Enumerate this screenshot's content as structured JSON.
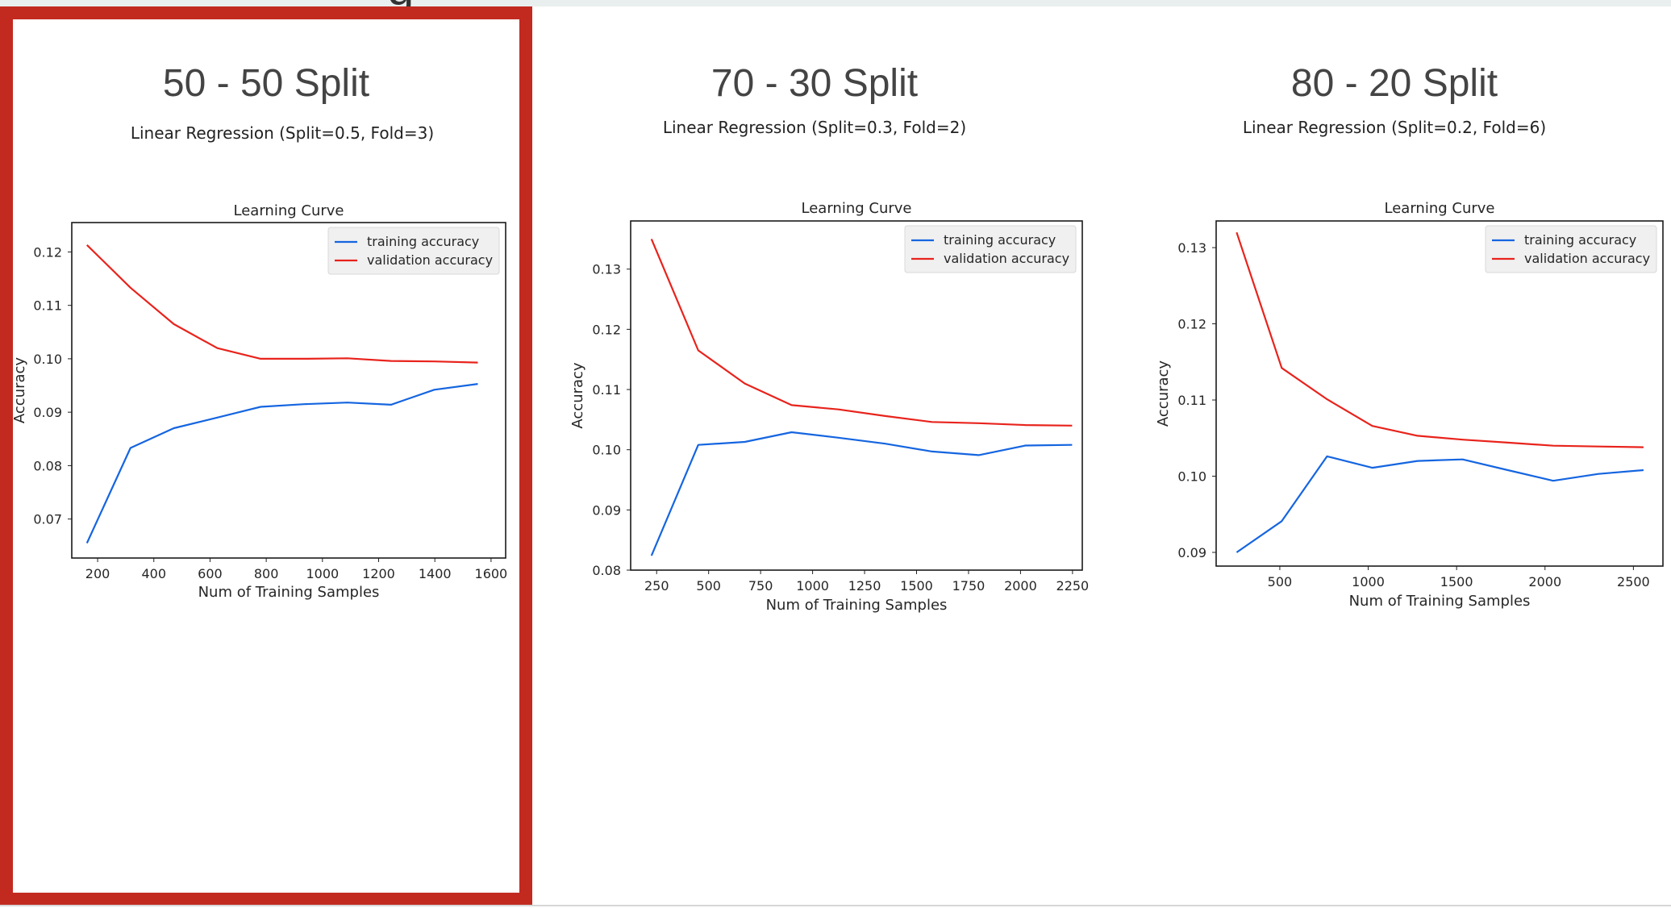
{
  "panels": [
    {
      "heading": "50 - 50 Split",
      "subtitle": "Linear Regression (Split=0.5, Fold=3)"
    },
    {
      "heading": "70 - 30 Split",
      "subtitle": "Linear Regression (Split=0.3, Fold=2)"
    },
    {
      "heading": "80 - 20 Split",
      "subtitle": "Linear Regression (Split=0.2, Fold=6)"
    }
  ],
  "colors": {
    "training": "#1565e0",
    "validation": "#e8231c",
    "highlight_border": "#c22a20",
    "legend_bg": "#f0f0f0"
  },
  "chart_data": [
    {
      "type": "line",
      "title": "Learning Curve",
      "xlabel": "Num of Training Samples",
      "ylabel": "Accuracy",
      "xlim": [
        108,
        1652
      ],
      "ylim": [
        0.0627,
        0.1255
      ],
      "xticks": [
        200,
        400,
        600,
        800,
        1000,
        1200,
        1400,
        1600
      ],
      "yticks": [
        0.07,
        0.08,
        0.09,
        0.1,
        0.11,
        0.12
      ],
      "ytick_labels": [
        "0.07",
        "0.08",
        "0.09",
        "0.10",
        "0.11",
        "0.12"
      ],
      "legend": "top-right",
      "grid": false,
      "series": [
        {
          "name": "training accuracy",
          "x": [
            162,
            317,
            471,
            626,
            780,
            935,
            1089,
            1244,
            1398,
            1553
          ],
          "y": [
            0.0655,
            0.0833,
            0.087,
            0.089,
            0.091,
            0.0915,
            0.0918,
            0.0914,
            0.0942,
            0.0953
          ]
        },
        {
          "name": "validation accuracy",
          "x": [
            162,
            317,
            471,
            626,
            780,
            935,
            1089,
            1244,
            1398,
            1553
          ],
          "y": [
            0.1213,
            0.1133,
            0.1065,
            0.102,
            0.1,
            0.1,
            0.1001,
            0.0996,
            0.0995,
            0.0993
          ]
        }
      ]
    },
    {
      "type": "line",
      "title": "Learning Curve",
      "xlabel": "Num of Training Samples",
      "ylabel": "Accuracy",
      "xlim": [
        125,
        2297
      ],
      "ylim": [
        0.08,
        0.138
      ],
      "xticks": [
        250,
        500,
        750,
        1000,
        1250,
        1500,
        1750,
        2000,
        2250
      ],
      "yticks": [
        0.08,
        0.09,
        0.1,
        0.11,
        0.12,
        0.13
      ],
      "ytick_labels": [
        "0.08",
        "0.09",
        "0.10",
        "0.11",
        "0.12",
        "0.13"
      ],
      "legend": "top-right",
      "grid": false,
      "series": [
        {
          "name": "training accuracy",
          "x": [
            225,
            450,
            674,
            899,
            1124,
            1349,
            1574,
            1799,
            2023,
            2248
          ],
          "y": [
            0.0824,
            0.1008,
            0.1013,
            0.1029,
            0.102,
            0.101,
            0.0997,
            0.0991,
            0.1007,
            0.1008
          ]
        },
        {
          "name": "validation accuracy",
          "x": [
            225,
            450,
            674,
            899,
            1124,
            1349,
            1574,
            1799,
            2023,
            2248
          ],
          "y": [
            0.135,
            0.1165,
            0.111,
            0.1074,
            0.1067,
            0.1056,
            0.1046,
            0.1044,
            0.1041,
            0.104
          ]
        }
      ]
    },
    {
      "type": "line",
      "title": "Learning Curve",
      "xlabel": "Num of Training Samples",
      "ylabel": "Accuracy",
      "xlim": [
        140,
        2667
      ],
      "ylim": [
        0.0882,
        0.1335
      ],
      "xticks": [
        500,
        1000,
        1500,
        2000,
        2500
      ],
      "yticks": [
        0.09,
        0.1,
        0.11,
        0.12,
        0.13
      ],
      "ytick_labels": [
        "0.09",
        "0.10",
        "0.11",
        "0.12",
        "0.13"
      ],
      "legend": "top-right",
      "grid": false,
      "series": [
        {
          "name": "training accuracy",
          "x": [
            256,
            511,
            767,
            1023,
            1279,
            1534,
            1790,
            2046,
            2302,
            2557
          ],
          "y": [
            0.09,
            0.0941,
            0.1026,
            0.1011,
            0.102,
            0.1022,
            0.1008,
            0.0994,
            0.1003,
            0.1008
          ]
        },
        {
          "name": "validation accuracy",
          "x": [
            256,
            511,
            767,
            1023,
            1279,
            1534,
            1790,
            2046,
            2302,
            2557
          ],
          "y": [
            0.132,
            0.1142,
            0.1101,
            0.1066,
            0.1053,
            0.1048,
            0.1044,
            0.104,
            0.1039,
            0.1038
          ]
        }
      ]
    }
  ]
}
